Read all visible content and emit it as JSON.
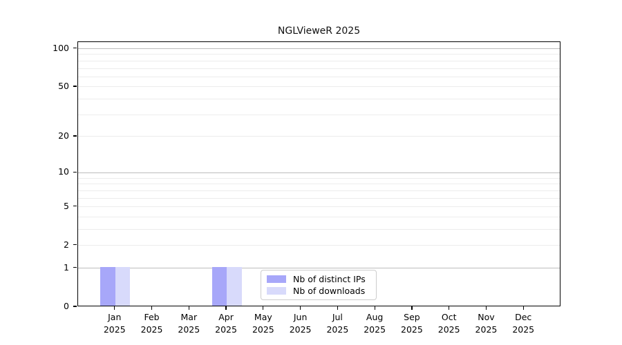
{
  "title": "NGLVieweR 2025",
  "chart_data": {
    "type": "bar",
    "title": "NGLVieweR 2025",
    "categories": [
      "Jan 2025",
      "Feb 2025",
      "Mar 2025",
      "Apr 2025",
      "May 2025",
      "Jun 2025",
      "Jul 2025",
      "Aug 2025",
      "Sep 2025",
      "Oct 2025",
      "Nov 2025",
      "Dec 2025"
    ],
    "series": [
      {
        "name": "Nb of distinct IPs",
        "color": "#a7a7f9",
        "values": [
          1,
          0,
          0,
          1,
          0,
          0,
          0,
          0,
          0,
          0,
          0,
          0
        ]
      },
      {
        "name": "Nb of downloads",
        "color": "#d8dafb",
        "values": [
          1,
          0,
          0,
          1,
          0,
          0,
          0,
          0,
          0,
          0,
          0,
          0
        ]
      }
    ],
    "xlabel": "",
    "ylabel": "",
    "y_scale": "log1p",
    "y_ticks": [
      0,
      1,
      2,
      5,
      10,
      20,
      50,
      100
    ],
    "y_major_gridlines": [
      1,
      10,
      100
    ],
    "y_minor_gridlines": [
      2,
      3,
      4,
      5,
      6,
      7,
      8,
      9,
      20,
      30,
      40,
      50,
      60,
      70,
      80,
      90
    ],
    "ylim": [
      0,
      103
    ],
    "grid": "horizontal",
    "legend_position": "lower center",
    "colors": {
      "axis": "#000000",
      "grid_major": "#bcbcbc",
      "grid_minor": "#ececec",
      "legend_border": "#cccccc",
      "background": "#ffffff"
    }
  }
}
